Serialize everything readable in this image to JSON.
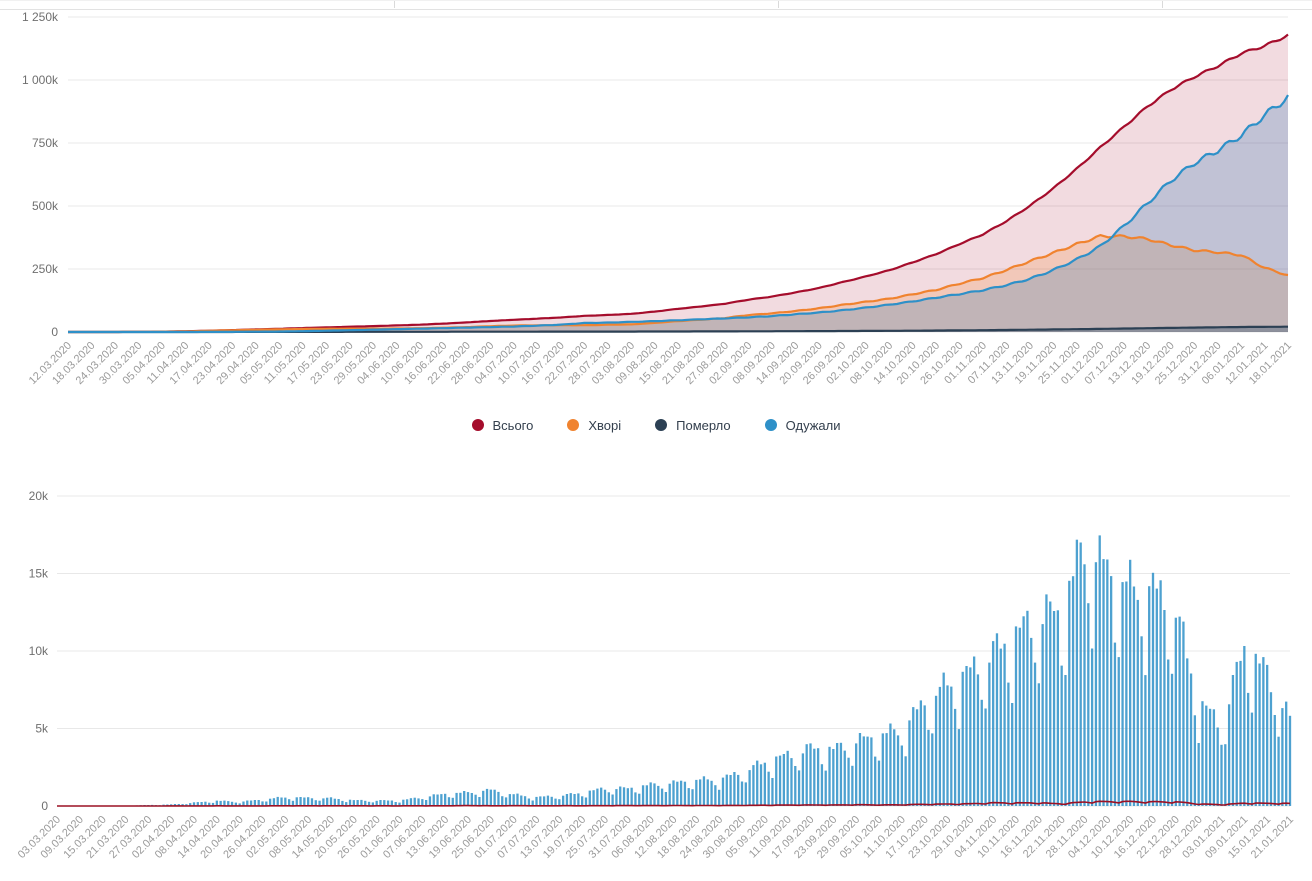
{
  "page": {
    "language": "uk",
    "background": "#ffffff",
    "grid_color": "#e8e8e8",
    "y_tick_color": "#6f6f6f",
    "x_tick_color": "#9b9b9b",
    "legend_text_color": "#333f4d"
  },
  "legend": {
    "items": [
      {
        "label": "Всього",
        "color": "#a50d2c"
      },
      {
        "label": "Хворі",
        "color": "#f0832f"
      },
      {
        "label": "Померло",
        "color": "#2c4054"
      },
      {
        "label": "Одужали",
        "color": "#2e90c8"
      }
    ]
  },
  "chart_data": [
    {
      "type": "area",
      "title": "",
      "unit": "thousands",
      "legend_position": "bottom",
      "x_label_angle": -45,
      "grid": true,
      "ylim_thousands": [
        0,
        1250
      ],
      "y_ticks": [
        {
          "label": "1 250k",
          "value": 1250
        },
        {
          "label": "1 000k",
          "value": 1000
        },
        {
          "label": "750k",
          "value": 750
        },
        {
          "label": "500k",
          "value": 500
        },
        {
          "label": "250k",
          "value": 250
        },
        {
          "label": "0",
          "value": 0
        }
      ],
      "x_labels": [
        "12.03.2020",
        "18.03.2020",
        "24.03.2020",
        "30.03.2020",
        "05.04.2020",
        "11.04.2020",
        "17.04.2020",
        "23.04.2020",
        "29.04.2020",
        "05.05.2020",
        "11.05.2020",
        "17.05.2020",
        "23.05.2020",
        "29.05.2020",
        "04.06.2020",
        "10.06.2020",
        "16.06.2020",
        "22.06.2020",
        "28.06.2020",
        "04.07.2020",
        "10.07.2020",
        "16.07.2020",
        "22.07.2020",
        "28.07.2020",
        "03.08.2020",
        "09.08.2020",
        "15.08.2020",
        "21.08.2020",
        "27.08.2020",
        "02.09.2020",
        "08.09.2020",
        "14.09.2020",
        "20.09.2020",
        "26.09.2020",
        "02.10.2020",
        "08.10.2020",
        "14.10.2020",
        "20.10.2020",
        "26.10.2020",
        "01.11.2020",
        "07.11.2020",
        "13.11.2020",
        "19.11.2020",
        "25.11.2020",
        "01.12.2020",
        "07.12.2020",
        "13.12.2020",
        "19.12.2020",
        "25.12.2020",
        "31.12.2020",
        "06.01.2021",
        "12.01.2021",
        "18.01.2021"
      ],
      "anchor_step_days": 6,
      "series": [
        {
          "name": "Всього",
          "color": "#a50d2c",
          "fill": "rgba(165,13,44,0.15)",
          "jitter": 0.004,
          "values": [
            0.003,
            0.021,
            0.113,
            0.548,
            1.308,
            2.777,
            5.106,
            7.647,
            10.406,
            12.697,
            15.648,
            18.291,
            20.986,
            23.204,
            25.964,
            29.07,
            33.234,
            38.074,
            43.628,
            48.5,
            52.843,
            57.64,
            63.929,
            67.597,
            71.968,
            80.949,
            91.946,
            101.602,
            112.059,
            128.228,
            140.479,
            156.797,
            174.416,
            197.504,
            220.346,
            244.734,
            276.177,
            309.107,
            348.924,
            387.481,
            440.188,
            500.865,
            570.153,
            647.976,
            732.625,
            813.306,
            894.215,
            961.178,
            1012.167,
            1055.047,
            1105.169,
            1135.316,
            1177.621
          ]
        },
        {
          "name": "Хворі",
          "color": "#f0832f",
          "fill": "rgba(240,131,47,0.22)",
          "jitter": 0.012,
          "values": [
            0.003,
            0.018,
            0.106,
            0.527,
            1.243,
            2.605,
            4.698,
            6.95,
            8.907,
            10.506,
            11.952,
            12.66,
            13.261,
            13.197,
            13.83,
            15.059,
            17.008,
            19.452,
            23.011,
            25.524,
            26.219,
            27.039,
            26.842,
            28.713,
            30.052,
            36.003,
            43.368,
            48.951,
            55.523,
            67.244,
            74.125,
            83.254,
            93.777,
            107.546,
            119.613,
            131.811,
            149.779,
            167.068,
            192.014,
            214.381,
            246.088,
            280.765,
            314.053,
            348.876,
            380.325,
            379.606,
            369.215,
            344.878,
            324.567,
            316.347,
            305.369,
            254.916,
            224.521
          ]
        },
        {
          "name": "Померло",
          "color": "#2c4054",
          "fill": "rgba(44,64,84,0.35)",
          "jitter": 0.006,
          "values": [
            0,
            0.002,
            0.004,
            0.013,
            0.037,
            0.083,
            0.133,
            0.193,
            0.261,
            0.316,
            0.408,
            0.514,
            0.617,
            0.696,
            0.762,
            0.87,
            0.963,
            1.089,
            1.147,
            1.249,
            1.372,
            1.456,
            1.59,
            1.682,
            1.764,
            1.892,
            2.093,
            2.244,
            2.403,
            2.71,
            2.934,
            3.242,
            3.532,
            3.903,
            4.261,
            4.69,
            5.165,
            5.786,
            6.51,
            7.1,
            8.1,
            9.1,
            10.1,
            11.1,
            12.3,
            13.7,
            15,
            16.3,
            17.6,
            18.7,
            19.8,
            20.4,
            21.1
          ]
        },
        {
          "name": "Одужали",
          "color": "#2e90c8",
          "fill": "rgba(46,120,180,0.25)",
          "jitter": 0.014,
          "values": [
            0,
            0.001,
            0.003,
            0.008,
            0.028,
            0.089,
            0.275,
            0.504,
            1.238,
            1.875,
            3.288,
            5.117,
            7.108,
            9.311,
            11.372,
            13.141,
            15.263,
            17.533,
            19.47,
            21.727,
            25.252,
            29.145,
            35.497,
            37.202,
            40.152,
            43.054,
            46.485,
            50.407,
            54.133,
            58.274,
            63.42,
            70.301,
            77.107,
            86.055,
            96.472,
            108.233,
            121.233,
            136.253,
            150.4,
            166,
            186,
            211,
            246,
            288,
            340,
            420,
            510,
            600,
            670,
            720,
            780,
            860,
            932
          ]
        }
      ]
    },
    {
      "type": "bar",
      "title": "",
      "grid": true,
      "x_label_angle": -45,
      "ylim": [
        0,
        20000
      ],
      "y_ticks": [
        {
          "label": "20k",
          "value": 20000
        },
        {
          "label": "15k",
          "value": 15000
        },
        {
          "label": "10k",
          "value": 10000
        },
        {
          "label": "5k",
          "value": 5000
        },
        {
          "label": "0",
          "value": 0
        }
      ],
      "x_labels": [
        "03.03.2020",
        "09.03.2020",
        "15.03.2020",
        "21.03.2020",
        "27.03.2020",
        "02.04.2020",
        "08.04.2020",
        "14.04.2020",
        "20.04.2020",
        "26.04.2020",
        "02.05.2020",
        "08.05.2020",
        "14.05.2020",
        "20.05.2020",
        "26.05.2020",
        "01.06.2020",
        "07.06.2020",
        "13.06.2020",
        "19.06.2020",
        "25.06.2020",
        "01.07.2020",
        "07.07.2020",
        "13.07.2020",
        "19.07.2020",
        "25.07.2020",
        "31.07.2020",
        "06.08.2020",
        "12.08.2020",
        "18.08.2020",
        "24.08.2020",
        "30.08.2020",
        "05.09.2020",
        "11.09.2020",
        "17.09.2020",
        "23.09.2020",
        "29.09.2020",
        "05.10.2020",
        "11.10.2020",
        "17.10.2020",
        "23.10.2020",
        "29.10.2020",
        "04.11.2020",
        "10.11.2020",
        "16.11.2020",
        "22.11.2020",
        "28.11.2020",
        "04.12.2020",
        "10.12.2020",
        "16.12.2020",
        "22.12.2020",
        "28.12.2020",
        "03.01.2021",
        "09.01.2021",
        "15.01.2021",
        "21.01.2021"
      ],
      "anchor_step_days": 6,
      "bars": {
        "color": "#2e90c8",
        "bar_width": 2.3,
        "jitter": 0.05,
        "weekday_factors": [
          1.04,
          1.1,
          1.12,
          1.08,
          1.0,
          0.78,
          0.66
        ],
        "anchors": [
          1,
          1,
          3,
          21,
          62,
          97,
          206,
          325,
          261,
          401,
          550,
          504,
          483,
          354,
          339,
          340,
          550,
          753,
          841,
          994,
          706,
          543,
          638,
          809,
          1106,
          1090,
          1318,
          1433,
          1616,
          1658,
          2096,
          2723,
          3144,
          3584,
          3497,
          4027,
          4348,
          4766,
          6410,
          7517,
          8312,
          9524,
          10611,
          11787,
          12079,
          16294,
          14580,
          13514,
          13371,
          12099,
          6451,
          5038,
          9846,
          8199,
          5358
        ]
      },
      "line": {
        "color": "#9c1023",
        "jitter": 0.02,
        "weekday_factors": [
          1.05,
          1.1,
          1.08,
          1.05,
          1.0,
          0.85,
          0.72
        ],
        "anchors": [
          0,
          0,
          1,
          1,
          3,
          3,
          5,
          10,
          5,
          10,
          12,
          12,
          11,
          13,
          10,
          9,
          12,
          15,
          23,
          14,
          18,
          14,
          16,
          14,
          20,
          25,
          23,
          28,
          29,
          31,
          39,
          49,
          54,
          65,
          63,
          79,
          67,
          77,
          108,
          121,
          139,
          199,
          191,
          198,
          132,
          257,
          276,
          276,
          259,
          261,
          133,
          81,
          177,
          167,
          161
        ]
      }
    }
  ]
}
